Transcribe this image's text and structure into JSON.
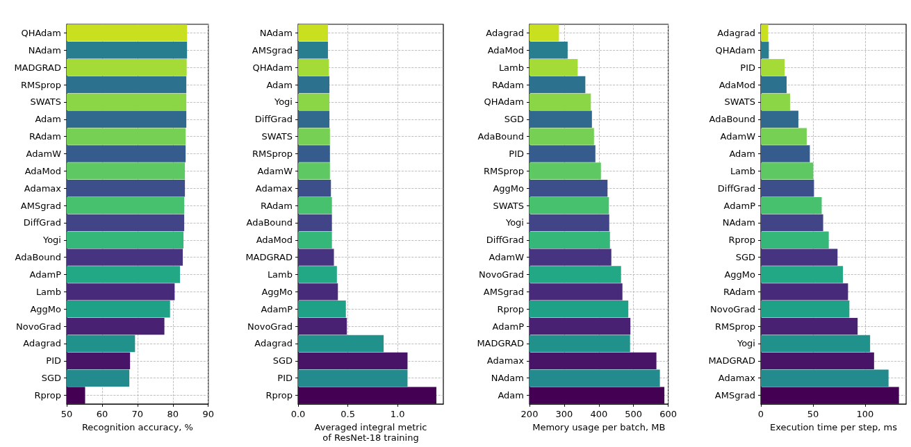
{
  "chart_data": [
    {
      "type": "bar",
      "orientation": "horizontal",
      "xlabel": "Recognition accuracy, %",
      "categories": [
        "QHAdam",
        "NAdam",
        "MADGRAD",
        "RMSprop",
        "SWATS",
        "Adam",
        "RAdam",
        "AdamW",
        "AdaMod",
        "Adamax",
        "AMSgrad",
        "DiffGrad",
        "Yogi",
        "AdaBound",
        "AdamP",
        "Lamb",
        "AggMo",
        "NovoGrad",
        "Adagrad",
        "PID",
        "SGD",
        "Rprop"
      ],
      "values": [
        84.0,
        84.0,
        83.9,
        83.8,
        83.8,
        83.8,
        83.6,
        83.6,
        83.4,
        83.4,
        83.2,
        83.2,
        83.0,
        82.8,
        82.0,
        80.5,
        79.2,
        77.6,
        69.3,
        67.9,
        67.7,
        55.2
      ],
      "colors": [
        "#c8e020",
        "#287d8e",
        "#a5db36",
        "#2c728e",
        "#8bd646",
        "#31688e",
        "#75d054",
        "#365c8d",
        "#5ec962",
        "#3c4f8a",
        "#48c16e",
        "#414487",
        "#35b779",
        "#463480",
        "#22a884",
        "#472a7a",
        "#1fa187",
        "#482173",
        "#21918c",
        "#481467",
        "#238a8d",
        "#440154"
      ],
      "xlim": [
        50,
        90
      ],
      "xticks": [
        50,
        60,
        70,
        80,
        90
      ],
      "grid": true
    },
    {
      "type": "bar",
      "orientation": "horizontal",
      "xlabel": "Averaged integral metric\nof ResNet-18 training",
      "categories": [
        "NAdam",
        "AMSgrad",
        "QHAdam",
        "Adam",
        "Yogi",
        "DiffGrad",
        "SWATS",
        "RMSprop",
        "AdamW",
        "Adamax",
        "RAdam",
        "AdaBound",
        "AdaMod",
        "MADGRAD",
        "Lamb",
        "AggMo",
        "AdamP",
        "NovoGrad",
        "Adagrad",
        "SGD",
        "PID",
        "Rprop"
      ],
      "values": [
        0.3,
        0.3,
        0.31,
        0.315,
        0.315,
        0.315,
        0.32,
        0.32,
        0.32,
        0.33,
        0.34,
        0.34,
        0.34,
        0.36,
        0.39,
        0.4,
        0.48,
        0.49,
        0.86,
        1.1,
        1.1,
        1.39
      ],
      "colors": [
        "#c8e020",
        "#287d8e",
        "#a5db36",
        "#2c728e",
        "#8bd646",
        "#31688e",
        "#75d054",
        "#365c8d",
        "#5ec962",
        "#3c4f8a",
        "#48c16e",
        "#414487",
        "#35b779",
        "#463480",
        "#22a884",
        "#472a7a",
        "#1fa187",
        "#482173",
        "#21918c",
        "#481467",
        "#238a8d",
        "#440154"
      ],
      "xlim": [
        0,
        1.46
      ],
      "xticks": [
        {
          "value": 0,
          "label": "0.0"
        },
        0.5,
        {
          "value": 1,
          "label": "1.0"
        }
      ],
      "grid": true
    },
    {
      "type": "bar",
      "orientation": "horizontal",
      "xlabel": "Memory usage per batch, MB",
      "categories": [
        "Adagrad",
        "AdaMod",
        "Lamb",
        "RAdam",
        "QHAdam",
        "SGD",
        "AdaBound",
        "PID",
        "RMSprop",
        "AggMo",
        "SWATS",
        "Yogi",
        "DiffGrad",
        "AdamW",
        "NovoGrad",
        "AMSgrad",
        "Rprop",
        "AdamP",
        "MADGRAD",
        "Adamax",
        "NAdam",
        "Adam"
      ],
      "values": [
        285,
        310,
        339,
        361,
        377,
        380,
        386,
        390,
        406,
        425,
        429,
        430,
        432,
        436,
        464,
        468,
        485,
        491,
        490,
        566,
        576,
        589
      ],
      "colors": [
        "#c8e020",
        "#287d8e",
        "#a5db36",
        "#2c728e",
        "#8bd646",
        "#31688e",
        "#75d054",
        "#365c8d",
        "#5ec962",
        "#3c4f8a",
        "#48c16e",
        "#414487",
        "#35b779",
        "#463480",
        "#22a884",
        "#472a7a",
        "#1fa187",
        "#482173",
        "#21918c",
        "#481467",
        "#238a8d",
        "#440154"
      ],
      "xlim": [
        200,
        600
      ],
      "xticks": [
        200,
        300,
        400,
        500,
        600
      ],
      "grid": true
    },
    {
      "type": "bar",
      "orientation": "horizontal",
      "xlabel": "Execution time per step, ms",
      "categories": [
        "Adagrad",
        "QHAdam",
        "PID",
        "AdaMod",
        "SWATS",
        "AdaBound",
        "AdamW",
        "Adam",
        "Lamb",
        "DiffGrad",
        "AdamP",
        "NAdam",
        "Rprop",
        "SGD",
        "AggMo",
        "RAdam",
        "NovoGrad",
        "RMSprop",
        "Yogi",
        "MADGRAD",
        "Adamax",
        "AMSgrad"
      ],
      "values": [
        7,
        7.6,
        22.8,
        24.7,
        28,
        36,
        44,
        47,
        50.3,
        51,
        58.4,
        59.8,
        65.2,
        73.6,
        78.8,
        83.7,
        85,
        92.9,
        104.9,
        108.7,
        122.6,
        132.6
      ],
      "colors": [
        "#c8e020",
        "#287d8e",
        "#a5db36",
        "#2c728e",
        "#8bd646",
        "#31688e",
        "#75d054",
        "#365c8d",
        "#5ec962",
        "#3c4f8a",
        "#48c16e",
        "#414487",
        "#35b779",
        "#463480",
        "#22a884",
        "#472a7a",
        "#1fa187",
        "#482173",
        "#21918c",
        "#481467",
        "#238a8d",
        "#440154"
      ],
      "xlim": [
        0,
        139.5
      ],
      "xticks": [
        0,
        50,
        100
      ],
      "grid": true
    }
  ]
}
